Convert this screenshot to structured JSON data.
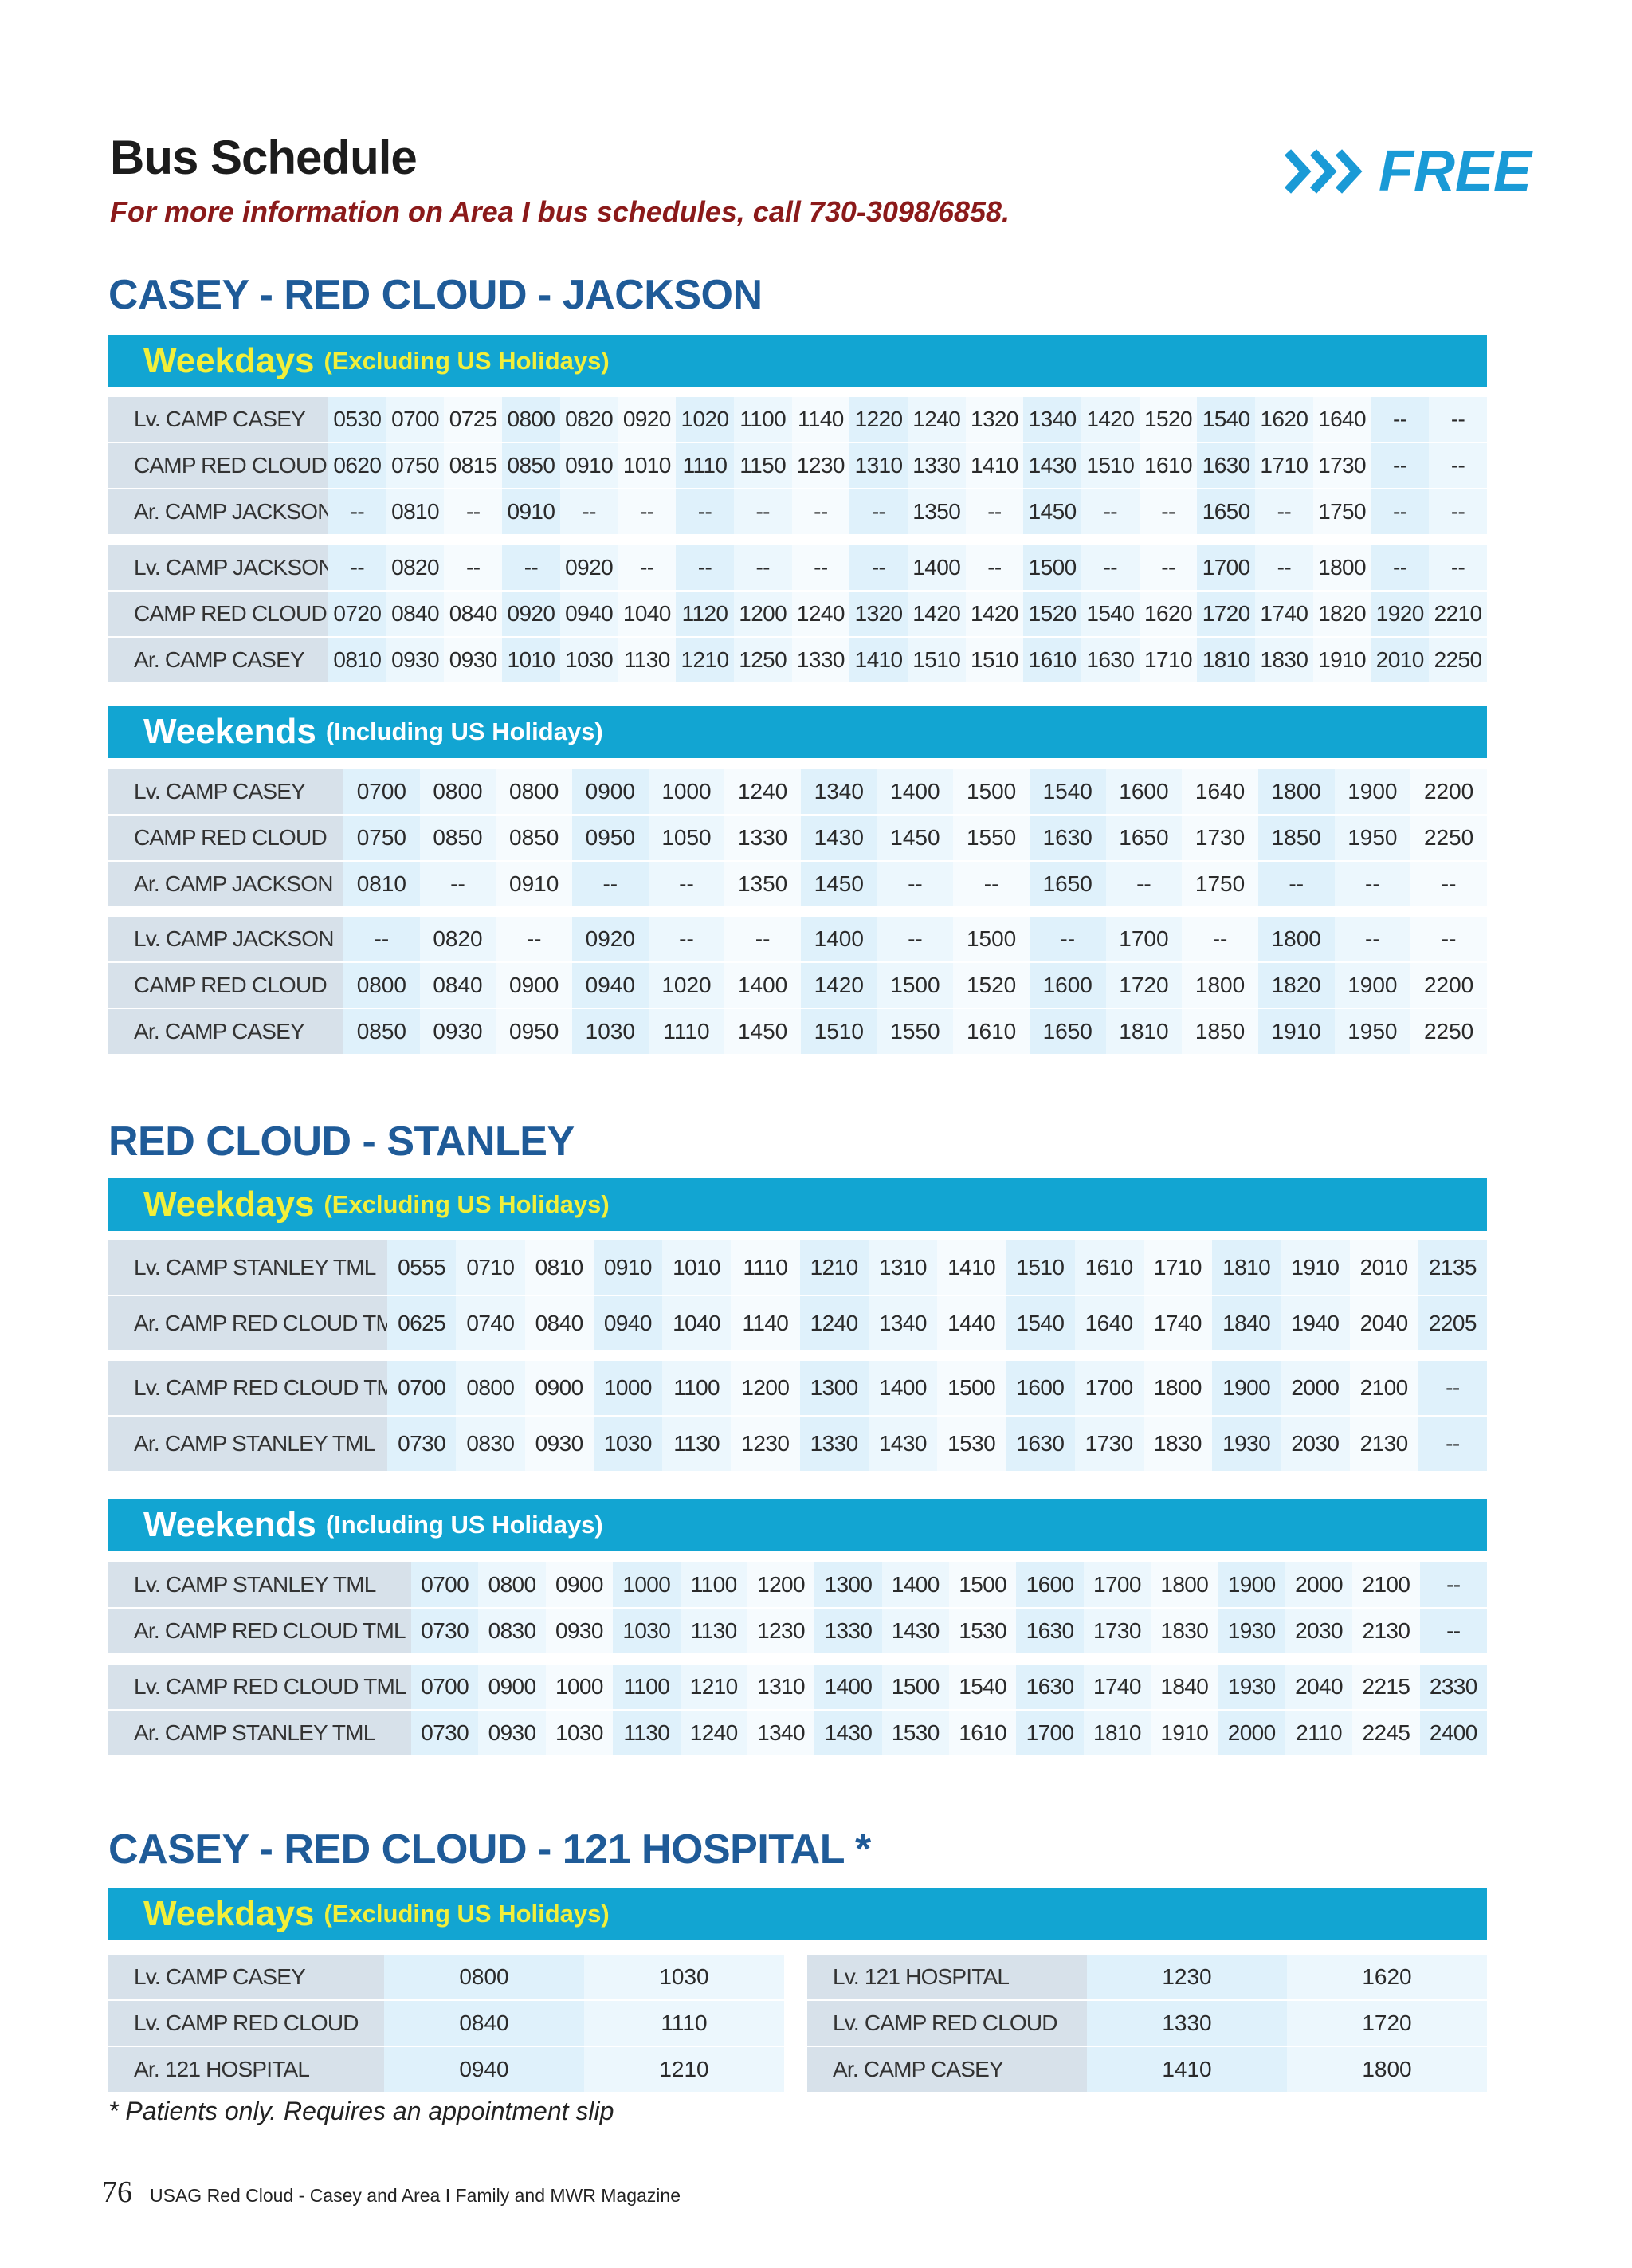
{
  "header": {
    "title": "Bus Schedule",
    "subtitle": "For more information on Area I bus schedules, call 730-3098/6858.",
    "badge": "FREE"
  },
  "section1": {
    "title": "CASEY - RED CLOUD - JACKSON",
    "weekdays_band": {
      "main": "Weekdays",
      "sub": "(Excluding US Holidays)"
    },
    "weekdays_rows": [
      [
        "Lv. CAMP CASEY",
        "0530",
        "0700",
        "0725",
        "0800",
        "0820",
        "0920",
        "1020",
        "1100",
        "1140",
        "1220",
        "1240",
        "1320",
        "1340",
        "1420",
        "1520",
        "1540",
        "1620",
        "1640",
        "--",
        "--"
      ],
      [
        "CAMP RED CLOUD",
        "0620",
        "0750",
        "0815",
        "0850",
        "0910",
        "1010",
        "1110",
        "1150",
        "1230",
        "1310",
        "1330",
        "1410",
        "1430",
        "1510",
        "1610",
        "1630",
        "1710",
        "1730",
        "--",
        "--"
      ],
      [
        "Ar. CAMP JACKSON",
        "--",
        "0810",
        "--",
        "0910",
        "--",
        "--",
        "--",
        "--",
        "--",
        "--",
        "1350",
        "--",
        "1450",
        "--",
        "--",
        "1650",
        "--",
        "1750",
        "--",
        "--"
      ],
      [
        "Lv. CAMP JACKSON",
        "--",
        "0820",
        "--",
        "--",
        "0920",
        "--",
        "--",
        "--",
        "--",
        "--",
        "1400",
        "--",
        "1500",
        "--",
        "--",
        "1700",
        "--",
        "1800",
        "--",
        "--"
      ],
      [
        "CAMP RED CLOUD",
        "0720",
        "0840",
        "0840",
        "0920",
        "0940",
        "1040",
        "1120",
        "1200",
        "1240",
        "1320",
        "1420",
        "1420",
        "1520",
        "1540",
        "1620",
        "1720",
        "1740",
        "1820",
        "1920",
        "2210"
      ],
      [
        "Ar. CAMP CASEY",
        "0810",
        "0930",
        "0930",
        "1010",
        "1030",
        "1130",
        "1210",
        "1250",
        "1330",
        "1410",
        "1510",
        "1510",
        "1610",
        "1630",
        "1710",
        "1810",
        "1830",
        "1910",
        "2010",
        "2250"
      ]
    ],
    "weekends_band": {
      "main": "Weekends",
      "sub": "(Including US Holidays)"
    },
    "weekends_rows": [
      [
        "Lv. CAMP CASEY",
        "0700",
        "0800",
        "0800",
        "0900",
        "1000",
        "1240",
        "1340",
        "1400",
        "1500",
        "1540",
        "1600",
        "1640",
        "1800",
        "1900",
        "2200"
      ],
      [
        "CAMP RED CLOUD",
        "0750",
        "0850",
        "0850",
        "0950",
        "1050",
        "1330",
        "1430",
        "1450",
        "1550",
        "1630",
        "1650",
        "1730",
        "1850",
        "1950",
        "2250"
      ],
      [
        "Ar. CAMP JACKSON",
        "0810",
        "--",
        "0910",
        "--",
        "--",
        "1350",
        "1450",
        "--",
        "--",
        "1650",
        "--",
        "1750",
        "--",
        "--",
        "--"
      ],
      [
        "Lv. CAMP JACKSON",
        "--",
        "0820",
        "--",
        "0920",
        "--",
        "--",
        "1400",
        "--",
        "1500",
        "--",
        "1700",
        "--",
        "1800",
        "--",
        "--"
      ],
      [
        "CAMP RED CLOUD",
        "0800",
        "0840",
        "0900",
        "0940",
        "1020",
        "1400",
        "1420",
        "1500",
        "1520",
        "1600",
        "1720",
        "1800",
        "1820",
        "1900",
        "2200"
      ],
      [
        "Ar. CAMP CASEY",
        "0850",
        "0930",
        "0950",
        "1030",
        "1110",
        "1450",
        "1510",
        "1550",
        "1610",
        "1650",
        "1810",
        "1850",
        "1910",
        "1950",
        "2250"
      ]
    ]
  },
  "section2": {
    "title": "RED CLOUD - STANLEY",
    "weekdays_band": {
      "main": "Weekdays",
      "sub": "(Excluding US Holidays)"
    },
    "weekdays_rows": [
      [
        "Lv. CAMP STANLEY TML",
        "0555",
        "0710",
        "0810",
        "0910",
        "1010",
        "1110",
        "1210",
        "1310",
        "1410",
        "1510",
        "1610",
        "1710",
        "1810",
        "1910",
        "2010",
        "2135"
      ],
      [
        "Ar. CAMP RED CLOUD TML",
        "0625",
        "0740",
        "0840",
        "0940",
        "1040",
        "1140",
        "1240",
        "1340",
        "1440",
        "1540",
        "1640",
        "1740",
        "1840",
        "1940",
        "2040",
        "2205"
      ],
      [
        "Lv. CAMP RED CLOUD TML",
        "0700",
        "0800",
        "0900",
        "1000",
        "1100",
        "1200",
        "1300",
        "1400",
        "1500",
        "1600",
        "1700",
        "1800",
        "1900",
        "2000",
        "2100",
        "--"
      ],
      [
        "Ar. CAMP STANLEY TML",
        "0730",
        "0830",
        "0930",
        "1030",
        "1130",
        "1230",
        "1330",
        "1430",
        "1530",
        "1630",
        "1730",
        "1830",
        "1930",
        "2030",
        "2130",
        "--"
      ]
    ],
    "weekends_band": {
      "main": "Weekends",
      "sub": "(Including US Holidays)"
    },
    "weekends_rows": [
      [
        "Lv. CAMP STANLEY TML",
        "0700",
        "0800",
        "0900",
        "1000",
        "1100",
        "1200",
        "1300",
        "1400",
        "1500",
        "1600",
        "1700",
        "1800",
        "1900",
        "2000",
        "2100",
        "--"
      ],
      [
        "Ar. CAMP RED CLOUD TML",
        "0730",
        "0830",
        "0930",
        "1030",
        "1130",
        "1230",
        "1330",
        "1430",
        "1530",
        "1630",
        "1730",
        "1830",
        "1930",
        "2030",
        "2130",
        "--"
      ],
      [
        "Lv. CAMP RED CLOUD TML",
        "0700",
        "0900",
        "1000",
        "1100",
        "1210",
        "1310",
        "1400",
        "1500",
        "1540",
        "1630",
        "1740",
        "1840",
        "1930",
        "2040",
        "2215",
        "2330"
      ],
      [
        "Ar. CAMP STANLEY TML",
        "0730",
        "0930",
        "1030",
        "1130",
        "1240",
        "1340",
        "1430",
        "1530",
        "1610",
        "1700",
        "1810",
        "1910",
        "2000",
        "2110",
        "2245",
        "2400"
      ]
    ]
  },
  "section3": {
    "title": "CASEY - RED CLOUD - 121 HOSPITAL *",
    "weekdays_band": {
      "main": "Weekdays",
      "sub": "(Excluding US Holidays)"
    },
    "left_rows": [
      [
        "Lv. CAMP CASEY",
        "0800",
        "1030"
      ],
      [
        "Lv. CAMP RED CLOUD",
        "0840",
        "1110"
      ],
      [
        "Ar. 121 HOSPITAL",
        "0940",
        "1210"
      ]
    ],
    "right_rows": [
      [
        "Lv. 121 HOSPITAL",
        "1230",
        "1620"
      ],
      [
        "Lv. CAMP RED CLOUD",
        "1330",
        "1720"
      ],
      [
        "Ar. CAMP CASEY",
        "1410",
        "1800"
      ]
    ],
    "footnote": "* Patients only. Requires an appointment slip"
  },
  "footer": {
    "page_number": "76",
    "magazine": "USAG Red Cloud - Casey and Area I Family and MWR Magazine"
  }
}
